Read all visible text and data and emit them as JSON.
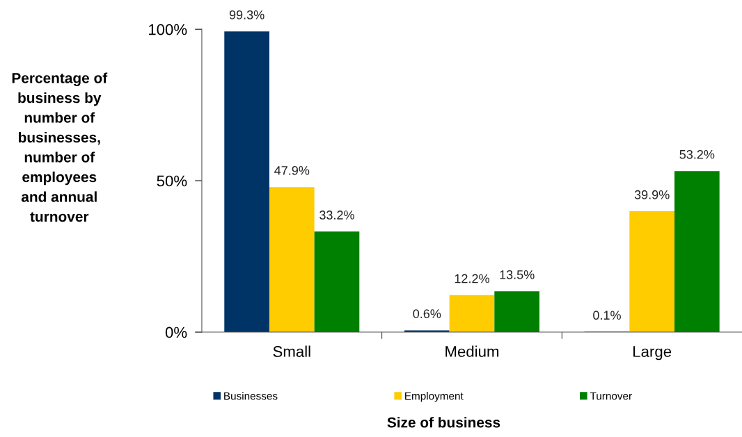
{
  "chart_data": {
    "type": "bar",
    "xlabel": "Size of business",
    "ylabel": "Percentage of\nbusiness by\nnumber of\nbusinesses,\nnumber of\nemployees\nand annual\nturnover",
    "categories": [
      "Small",
      "Medium",
      "Large"
    ],
    "series": [
      {
        "name": "Businesses",
        "color": "#003366",
        "values": [
          99.3,
          0.6,
          0.1
        ],
        "value_labels": [
          "99.3%",
          "0.6%",
          "0.1%"
        ]
      },
      {
        "name": "Employment",
        "color": "#ffcc00",
        "values": [
          47.9,
          12.2,
          39.9
        ],
        "value_labels": [
          "47.9%",
          "12.2%",
          "39.9%"
        ]
      },
      {
        "name": "Turnover",
        "color": "#008000",
        "values": [
          33.2,
          13.5,
          53.2
        ],
        "value_labels": [
          "33.2%",
          "13.5%",
          "53.2%"
        ]
      }
    ],
    "ylim": [
      0,
      100
    ],
    "yticks": [
      {
        "value": 0,
        "label": "0%"
      },
      {
        "value": 50,
        "label": "50%"
      },
      {
        "value": 100,
        "label": "100%"
      }
    ],
    "grid": false,
    "legend": "bottom"
  }
}
